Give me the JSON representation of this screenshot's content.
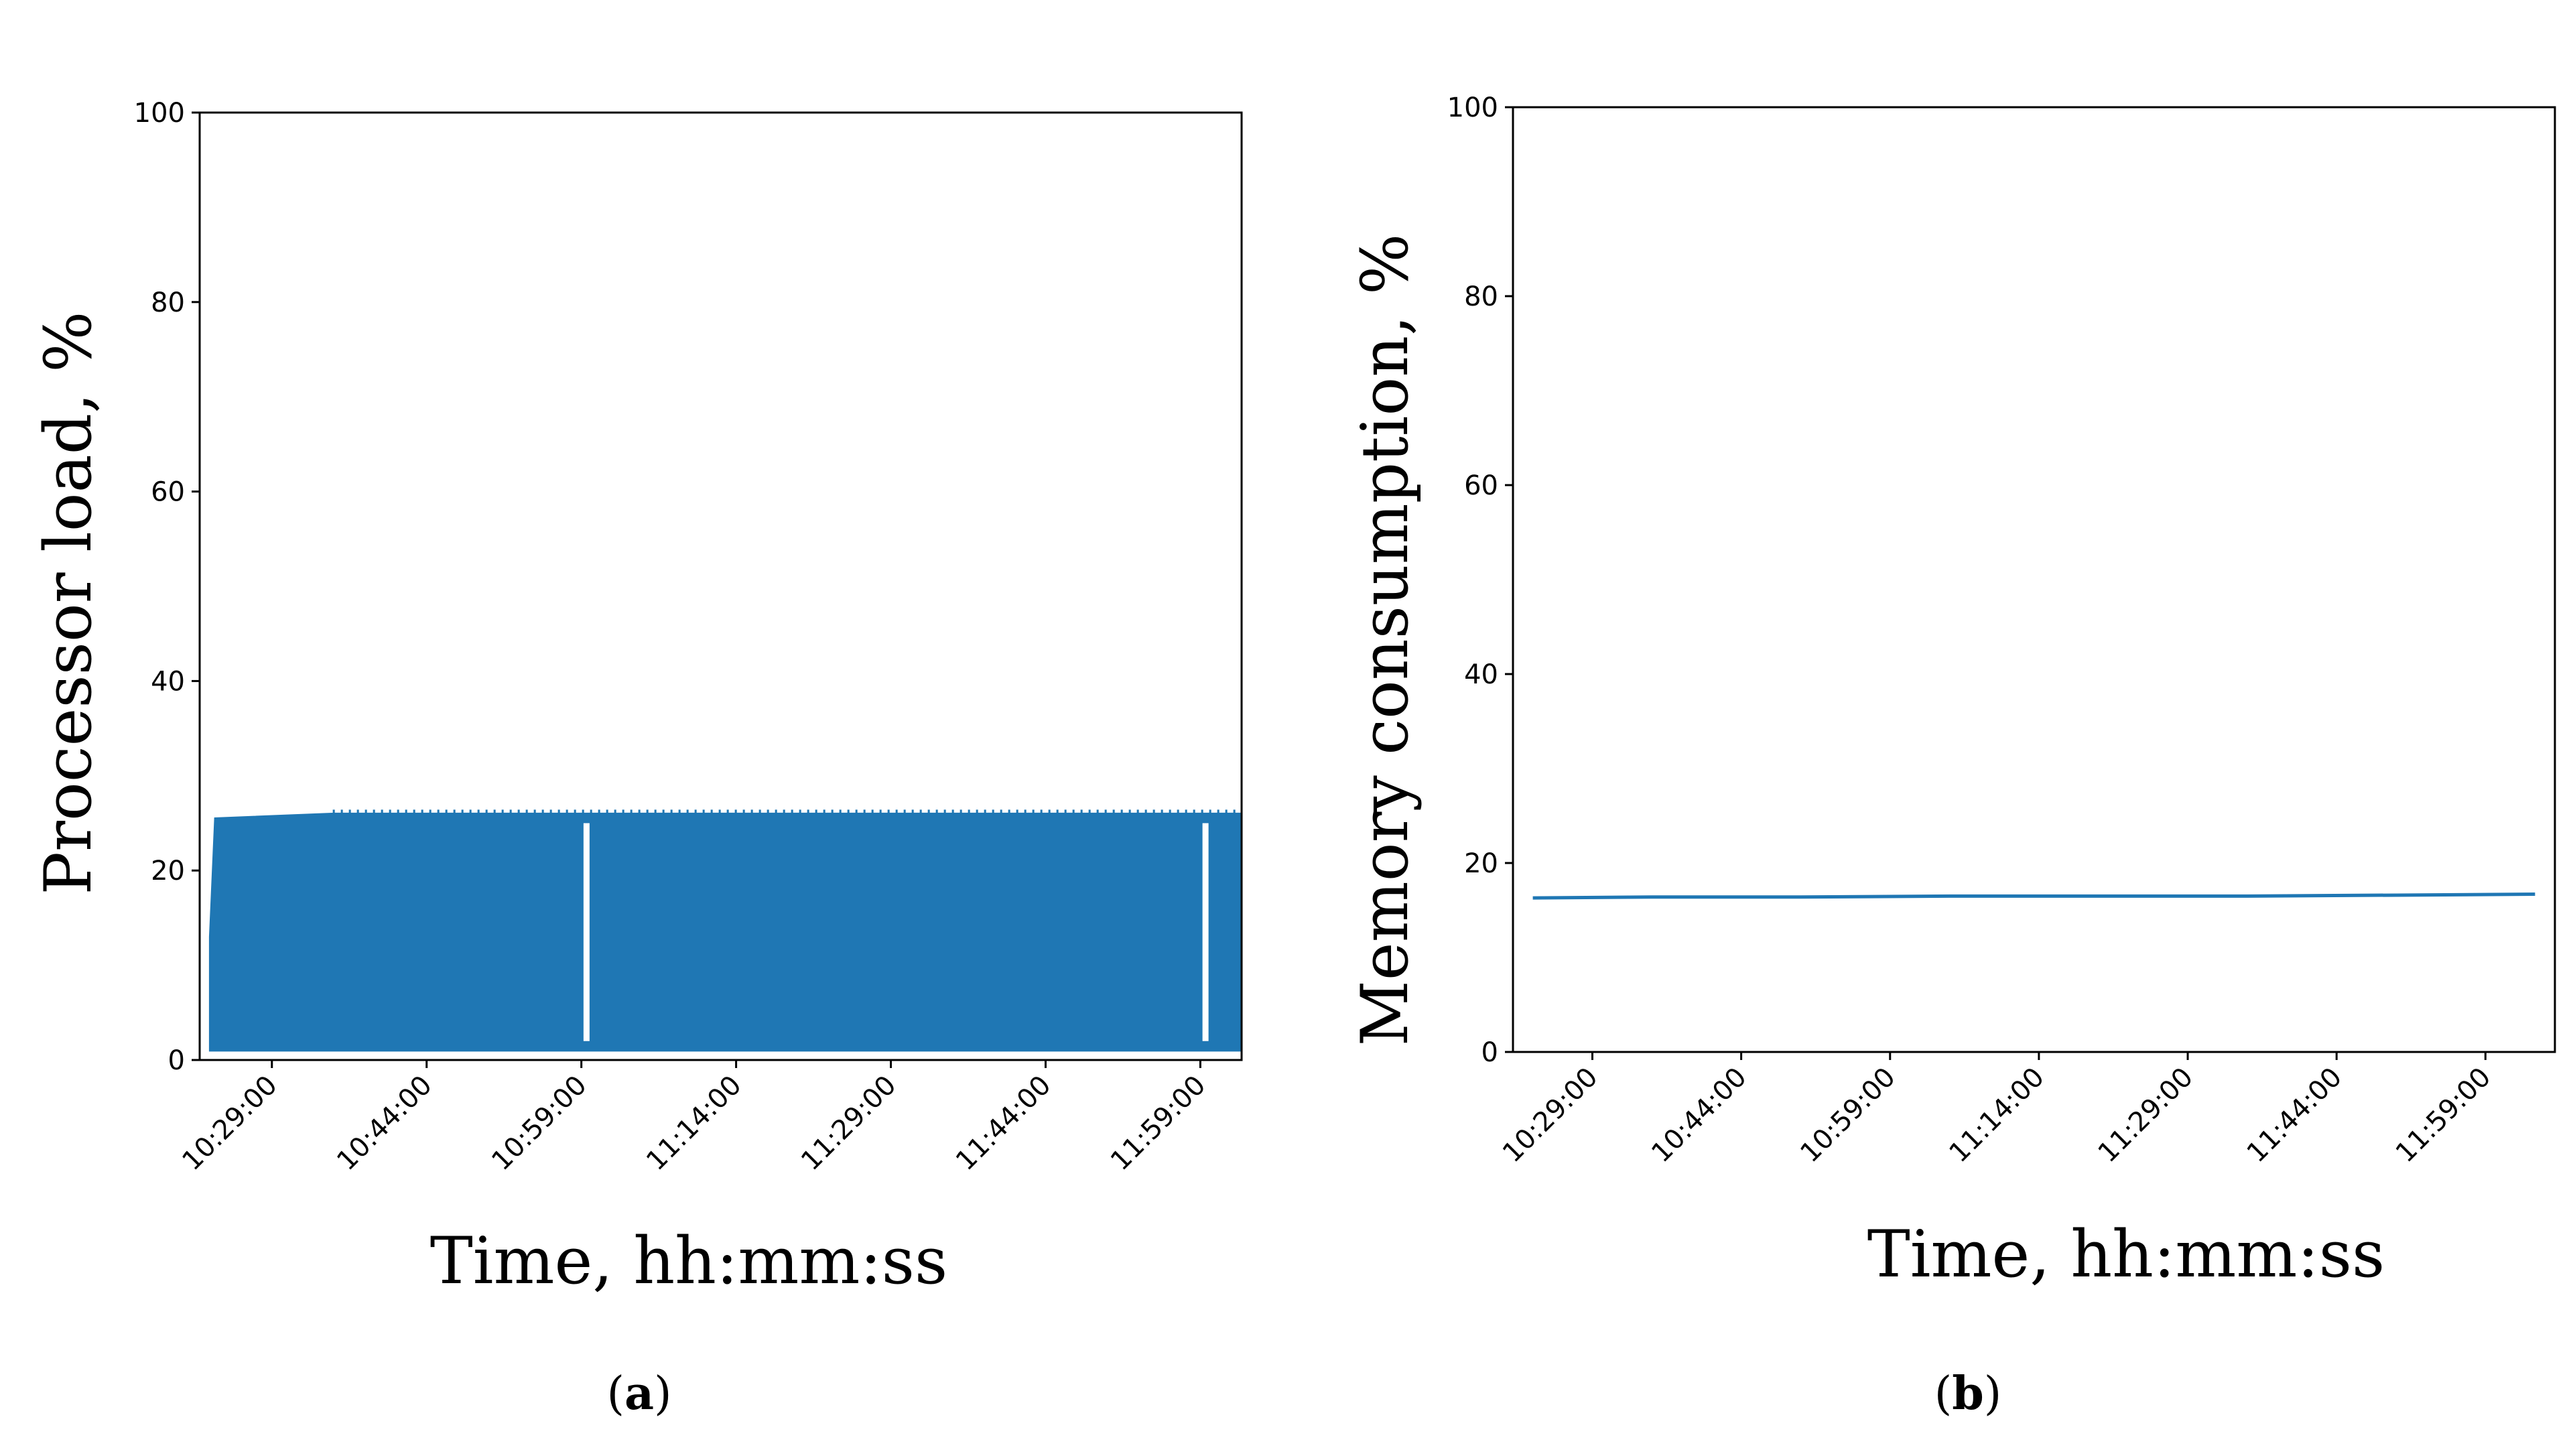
{
  "chart_data": [
    {
      "id": "a",
      "type": "area",
      "title": "",
      "caption_letter": "a",
      "xlabel": "Time, hh:mm:ss",
      "ylabel": "Processor load, %",
      "xlim": [
        "10:22:00",
        "12:03:00"
      ],
      "ylim": [
        0,
        100
      ],
      "yticks": [
        "0",
        "20",
        "40",
        "60",
        "80",
        "100"
      ],
      "xticks": [
        "10:29:00",
        "10:44:00",
        "10:59:00",
        "11:14:00",
        "11:29:00",
        "11:44:00",
        "11:59:00"
      ],
      "grid": false,
      "color": "#1f77b4",
      "series": [
        {
          "x": [
            "10:23:00",
            "10:23:30",
            "10:35:00",
            "10:45:00",
            "10:59:30",
            "11:00:30",
            "11:30:00",
            "11:59:30",
            "12:00:30",
            "12:03:00"
          ],
          "y_low": [
            1,
            1,
            1,
            1,
            1,
            1,
            1,
            1,
            1,
            1
          ],
          "y_high": [
            13,
            25.5,
            26,
            26,
            26,
            26,
            26,
            26,
            26,
            26
          ]
        }
      ],
      "gaps": [
        "10:59:30",
        "11:59:30"
      ]
    },
    {
      "id": "b",
      "type": "line",
      "title": "",
      "caption_letter": "b",
      "xlabel": "Time, hh:mm:ss",
      "ylabel": "Memory consumption, %",
      "xlim": [
        "10:21:00",
        "12:06:00"
      ],
      "ylim": [
        0,
        100
      ],
      "yticks": [
        "0",
        "20",
        "40",
        "60",
        "80",
        "100"
      ],
      "xticks": [
        "10:29:00",
        "10:44:00",
        "10:59:00",
        "11:14:00",
        "11:29:00",
        "11:44:00",
        "11:59:00"
      ],
      "grid": false,
      "color": "#1f77b4",
      "series": [
        {
          "x": [
            "10:23:00",
            "10:35:00",
            "10:50:00",
            "11:05:00",
            "11:20:00",
            "11:35:00",
            "11:50:00",
            "12:04:00"
          ],
          "y": [
            16.3,
            16.4,
            16.4,
            16.5,
            16.5,
            16.5,
            16.6,
            16.7
          ]
        }
      ]
    }
  ]
}
